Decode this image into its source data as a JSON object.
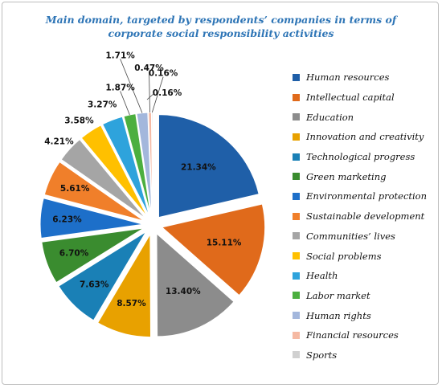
{
  "chart_data": {
    "type": "pie",
    "title": "Main domain, targeted by respondents’ companies in terms of corporate social responsibility activities",
    "legend_position": "right",
    "slices": [
      {
        "label": "Human resources",
        "value": 21.34,
        "value_label": "21.34%",
        "color": "#1f5fa8"
      },
      {
        "label": "Intellectual capital",
        "value": 15.11,
        "value_label": "15.11%",
        "color": "#e06a1b"
      },
      {
        "label": "Education",
        "value": 13.4,
        "value_label": "13.40%",
        "color": "#8c8c8c"
      },
      {
        "label": "Innovation and creativity",
        "value": 8.57,
        "value_label": "8.57%",
        "color": "#e8a100"
      },
      {
        "label": "Technological progress",
        "value": 7.63,
        "value_label": "7.63%",
        "color": "#1a80b6"
      },
      {
        "label": "Green marketing",
        "value": 6.7,
        "value_label": "6.70%",
        "color": "#3a8c2f"
      },
      {
        "label": "Environmental protection",
        "value": 6.23,
        "value_label": "6.23%",
        "color": "#1d6fc9"
      },
      {
        "label": "Sustainable development",
        "value": 5.61,
        "value_label": "5.61%",
        "color": "#f07f2a"
      },
      {
        "label": "Communities’ lives",
        "value": 4.21,
        "value_label": "4.21%",
        "color": "#a5a5a5"
      },
      {
        "label": "Social problems",
        "value": 3.58,
        "value_label": "3.58%",
        "color": "#ffc000"
      },
      {
        "label": "Health",
        "value": 3.27,
        "value_label": "3.27%",
        "color": "#2ea3dc"
      },
      {
        "label": "Labor market",
        "value": 1.87,
        "value_label": "1.87%",
        "color": "#4caf3f"
      },
      {
        "label": "Human rights",
        "value": 1.71,
        "value_label": "1.71%",
        "color": "#a3b7dc"
      },
      {
        "label": "Financial resources",
        "value": 0.47,
        "value_label": "0.47%",
        "color": "#f5b9a3"
      },
      {
        "label": "Sports",
        "value": 0.16,
        "value_label": "0.16%",
        "color": "#d0d0d0"
      }
    ],
    "extra_value_label": "0.16%"
  }
}
